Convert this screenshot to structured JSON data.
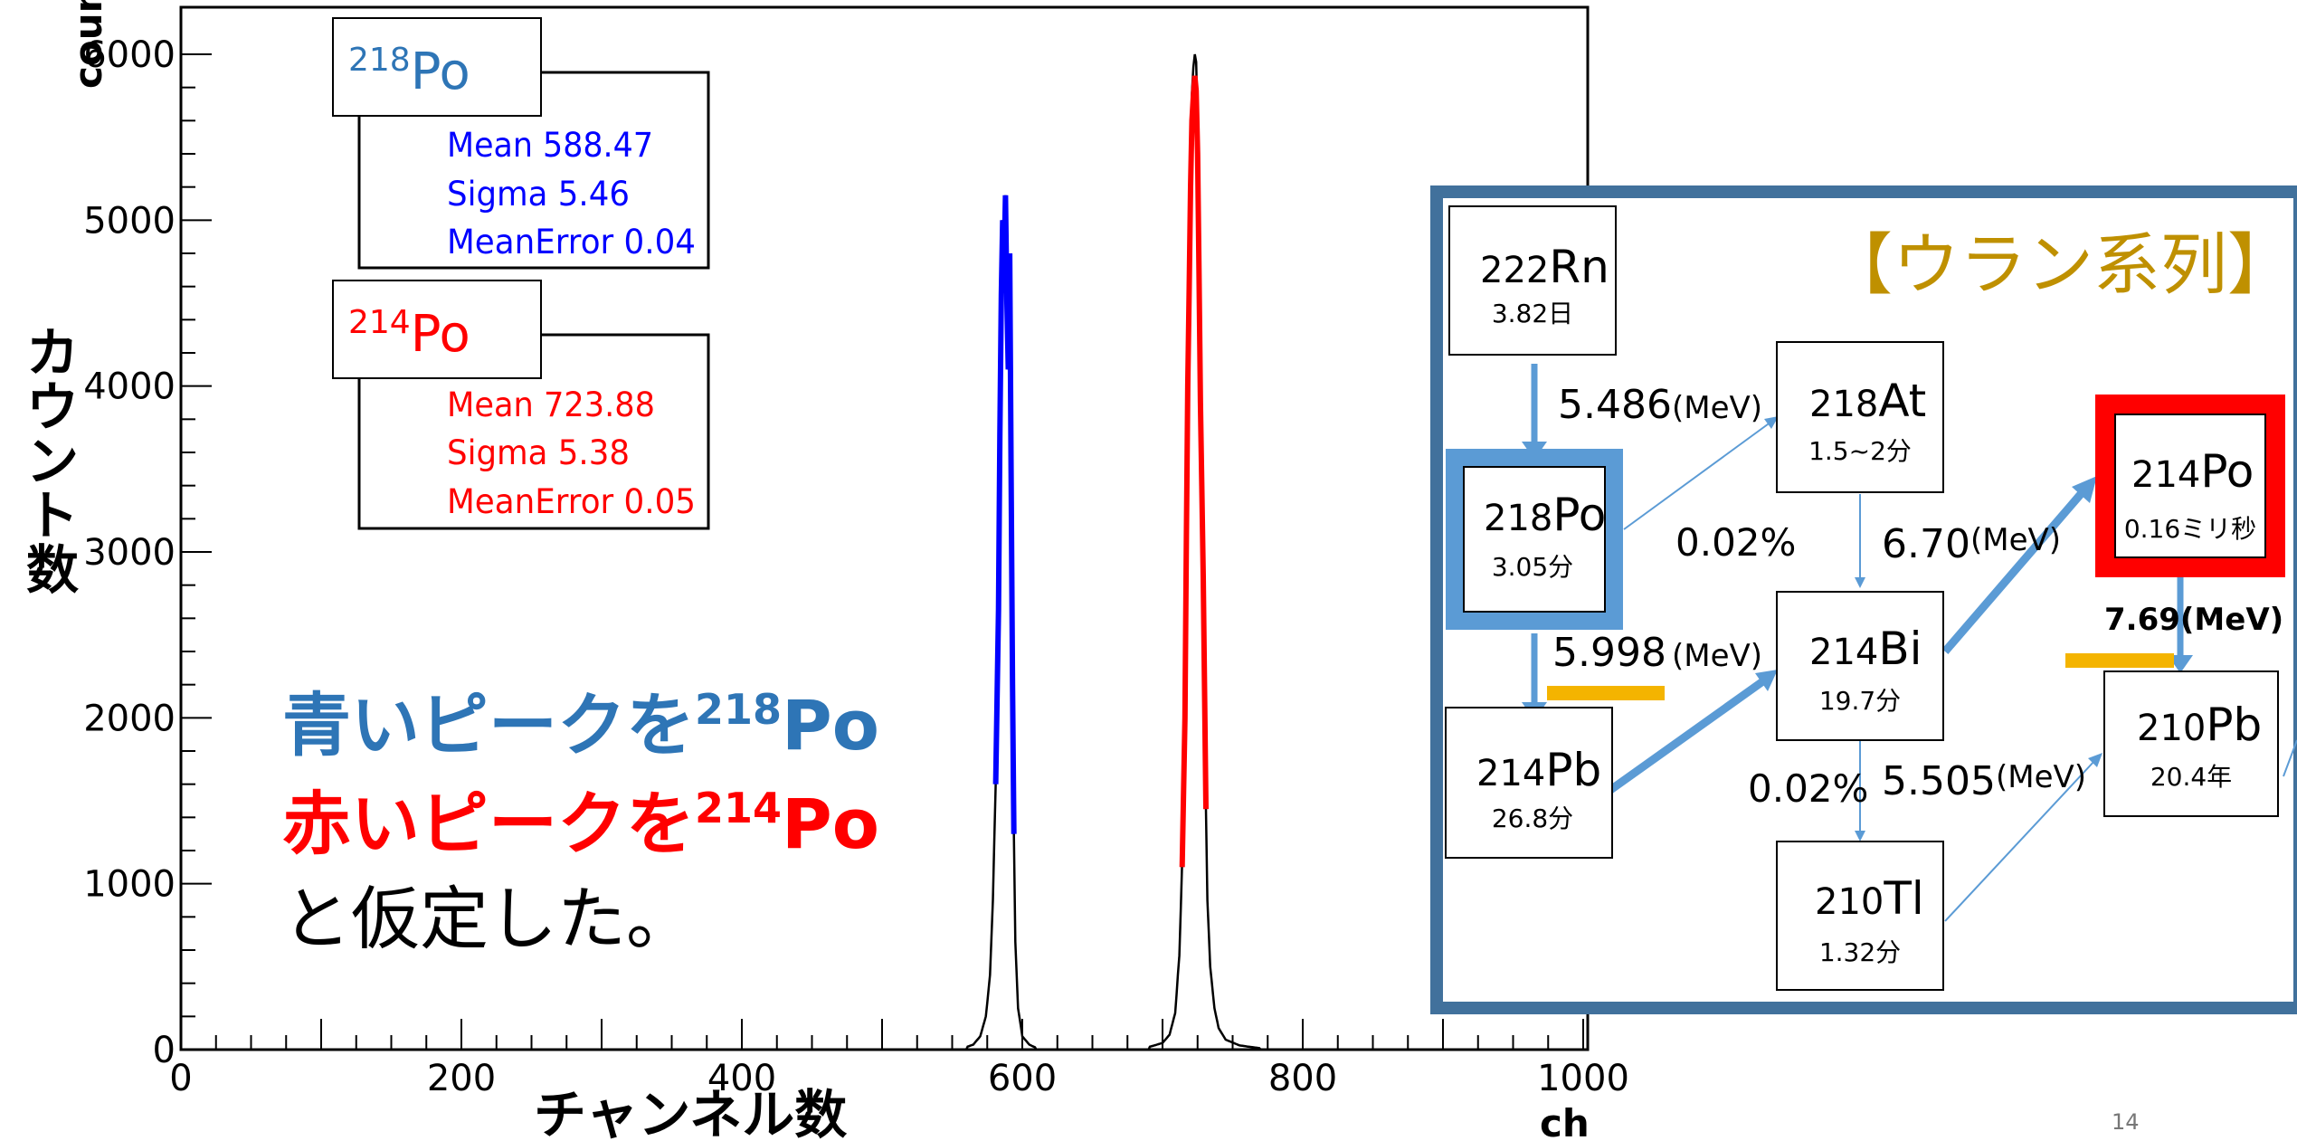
{
  "chart_data": {
    "type": "histogram",
    "xlabel": "ch",
    "ylabel": "counts",
    "xlim": [
      0,
      1000
    ],
    "ylim": [
      0,
      6000
    ],
    "x_ticks": [
      0,
      200,
      400,
      600,
      800,
      1000
    ],
    "y_ticks": [
      0,
      1000,
      2000,
      3000,
      4000,
      5000,
      6000
    ],
    "series": [
      {
        "name": "218Po",
        "color": "#0000ff",
        "peak": [
          [
            560,
            15
          ],
          [
            565,
            30
          ],
          [
            570,
            80
          ],
          [
            574,
            200
          ],
          [
            577,
            450
          ],
          [
            579,
            900
          ],
          [
            581,
            1600
          ],
          [
            583,
            2650
          ],
          [
            584,
            3700
          ],
          [
            585,
            4550
          ],
          [
            586,
            5000
          ],
          [
            587,
            4700
          ],
          [
            588,
            5150
          ],
          [
            589,
            4500
          ],
          [
            590,
            4100
          ],
          [
            591,
            4800
          ],
          [
            592,
            3500
          ],
          [
            593,
            2200
          ],
          [
            594,
            1300
          ],
          [
            595,
            650
          ],
          [
            597,
            250
          ],
          [
            600,
            80
          ],
          [
            605,
            30
          ],
          [
            610,
            10
          ]
        ]
      },
      {
        "name": "214Po",
        "color": "#ff0000",
        "peak": [
          [
            690,
            15
          ],
          [
            700,
            40
          ],
          [
            705,
            90
          ],
          [
            709,
            220
          ],
          [
            712,
            550
          ],
          [
            714,
            1100
          ],
          [
            716,
            2000
          ],
          [
            717,
            3100
          ],
          [
            718,
            4000
          ],
          [
            719,
            4600
          ],
          [
            720,
            5200
          ],
          [
            721,
            5600
          ],
          [
            722,
            5750
          ],
          [
            723,
            5870
          ],
          [
            724,
            5780
          ],
          [
            725,
            5400
          ],
          [
            726,
            4700
          ],
          [
            727,
            3900
          ],
          [
            728,
            3400
          ],
          [
            729,
            2850
          ],
          [
            730,
            2150
          ],
          [
            731,
            1450
          ],
          [
            732,
            900
          ],
          [
            734,
            500
          ],
          [
            737,
            250
          ],
          [
            740,
            130
          ],
          [
            745,
            60
          ],
          [
            755,
            25
          ],
          [
            770,
            8
          ]
        ]
      }
    ],
    "envelope_peak": 6000,
    "fit_boxes": [
      {
        "title_sup": "218",
        "title": "Po",
        "color": "#0000ff",
        "lines": [
          "Mean 588.47",
          "Sigma 5.46",
          "MeanError 0.04"
        ]
      },
      {
        "title_sup": "214",
        "title": "Po",
        "color": "#ff0000",
        "lines": [
          "Mean 723.88",
          "Sigma 5.38",
          "MeanError 0.05"
        ]
      }
    ]
  },
  "labels": {
    "y_axis_jp": "カウント数",
    "x_axis_jp": "チャンネル数",
    "note_line1": "青いピークを",
    "note_line1_sup": "218",
    "note_line1_tail": "Po",
    "note_line2": "赤いピークを",
    "note_line2_sup": "214",
    "note_line2_tail": "Po",
    "note_line3": "と仮定した。",
    "page_number": "14"
  },
  "decay": {
    "title": "【ウラン系列】",
    "nodes": [
      {
        "mass": "222",
        "sym": "Rn",
        "life": "3.82日"
      },
      {
        "mass": "218",
        "sym": "Po",
        "life": "3.05分"
      },
      {
        "mass": "214",
        "sym": "Pb",
        "life": "26.8分"
      },
      {
        "mass": "218",
        "sym": "At",
        "life": "1.5~2分"
      },
      {
        "mass": "214",
        "sym": "Bi",
        "life": "19.7分"
      },
      {
        "mass": "210",
        "sym": "Tl",
        "life": "1.32分"
      },
      {
        "mass": "214",
        "sym": "Po",
        "life": "0.16ミリ秒"
      },
      {
        "mass": "210",
        "sym": "Pb",
        "life": "20.4年"
      }
    ],
    "energies": {
      "rn_po": "5.486",
      "po218_pb": "5.998",
      "bi_po": "6.70",
      "po214_pb": "7.69",
      "tl_pb": "5.505",
      "unit": "(MeV)"
    },
    "branches": {
      "po_at": "0.02%",
      "bi_tl": "0.02%"
    }
  },
  "colors": {
    "blue_text": "#2e75b6",
    "red_text": "#ff0000",
    "gold": "#bf9000",
    "frame": "#41719c",
    "arrow": "#5b9bd5",
    "highlight_box": "#5b9bd5",
    "alpha_box": "#ff0000",
    "energy_bar": "#f4b400"
  }
}
